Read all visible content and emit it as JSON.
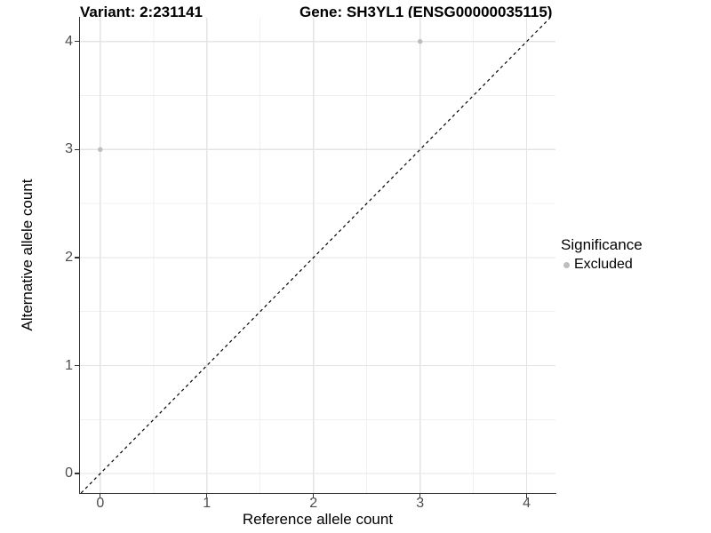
{
  "titles": {
    "variant": "Variant: 2:231141",
    "gene": "Gene: SH3YL1 (ENSG00000035115)"
  },
  "chart_data": {
    "type": "scatter",
    "title_left": "Variant: 2:231141",
    "title_right": "Gene: SH3YL1 (ENSG00000035115)",
    "xlabel": "Reference allele count",
    "ylabel": "Alternative allele count",
    "xlim": [
      -0.19,
      4.27
    ],
    "ylim": [
      -0.18,
      4.22
    ],
    "x_ticks": [
      0,
      1,
      2,
      3,
      4
    ],
    "y_ticks": [
      0,
      1,
      2,
      3,
      4
    ],
    "x_minor_ticks": [
      0.5,
      1.5,
      2.5,
      3.5
    ],
    "y_minor_ticks": [
      0.5,
      1.5,
      2.5,
      3.5
    ],
    "grid": true,
    "series": [
      {
        "name": "Excluded",
        "color": "#bdbdbd",
        "points": [
          {
            "x": 0,
            "y": 3
          },
          {
            "x": 3,
            "y": 4
          }
        ]
      }
    ],
    "reference_line": {
      "kind": "identity y=x",
      "style": "dashed",
      "color": "#000000"
    },
    "legend_position": "right"
  },
  "legend": {
    "title": "Significance",
    "items": [
      {
        "label": "Excluded",
        "color": "#bdbdbd"
      }
    ]
  }
}
